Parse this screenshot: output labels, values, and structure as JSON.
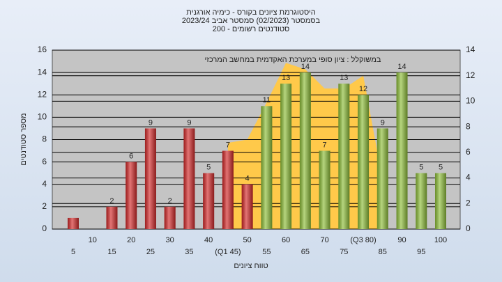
{
  "chart_data": {
    "type": "bar",
    "title": [
      "היסטוגרמת ציונים בקורס - כימיה אורגנית",
      "בסמסטר  (02/2023)  סמסטר אביב 2023/24",
      "סטודנטים רשומים - 200"
    ],
    "annotation": "במשוקלל : ציון סופי במערכת האקדמית במחשב המרכזי",
    "ylabel": "מספר סטודנטים",
    "xlabel": "טווח ציונים",
    "categories": [
      "5",
      "10",
      "15",
      "20",
      "25",
      "30",
      "35",
      "40",
      "(Q1 45)",
      "50",
      "55",
      "60",
      "65",
      "70",
      "75",
      "(Q3 80)",
      "85",
      "90",
      "95",
      "100"
    ],
    "values": [
      1,
      0,
      2,
      6,
      9,
      2,
      9,
      5,
      7,
      4,
      11,
      13,
      14,
      7,
      13,
      12,
      9,
      14,
      5,
      5
    ],
    "value_labels": [
      null,
      null,
      "2",
      "6",
      "9",
      "2",
      "9",
      "5",
      "7",
      "4",
      "11",
      "13",
      "14",
      "7",
      "13",
      "12",
      "9",
      "14",
      "5",
      "5"
    ],
    "colors": [
      "#d42a2a",
      "#d42a2a",
      "#d42a2a",
      "#d42a2a",
      "#d42a2a",
      "#d42a2a",
      "#d42a2a",
      "#d42a2a",
      "#d42a2a",
      "#d42a2a",
      "#8fbf3a",
      "#8fbf3a",
      "#8fbf3a",
      "#8fbf3a",
      "#8fbf3a",
      "#8fbf3a",
      "#8fbf3a",
      "#8fbf3a",
      "#8fbf3a",
      "#8fbf3a"
    ],
    "area": {
      "axis": "y2",
      "color": "#ffc94a",
      "values": [
        null,
        null,
        null,
        null,
        null,
        null,
        null,
        null,
        6.75,
        7,
        9.9,
        13,
        12.5,
        11,
        11,
        12,
        3.8,
        null,
        null,
        null
      ]
    },
    "ylim": [
      0,
      16
    ],
    "yticks": [
      0,
      2,
      4,
      6,
      8,
      10,
      12,
      14,
      16
    ],
    "y2lim": [
      0,
      14
    ],
    "y2ticks": [
      0,
      2,
      4,
      6,
      8,
      10,
      12,
      14
    ],
    "grid": true
  }
}
